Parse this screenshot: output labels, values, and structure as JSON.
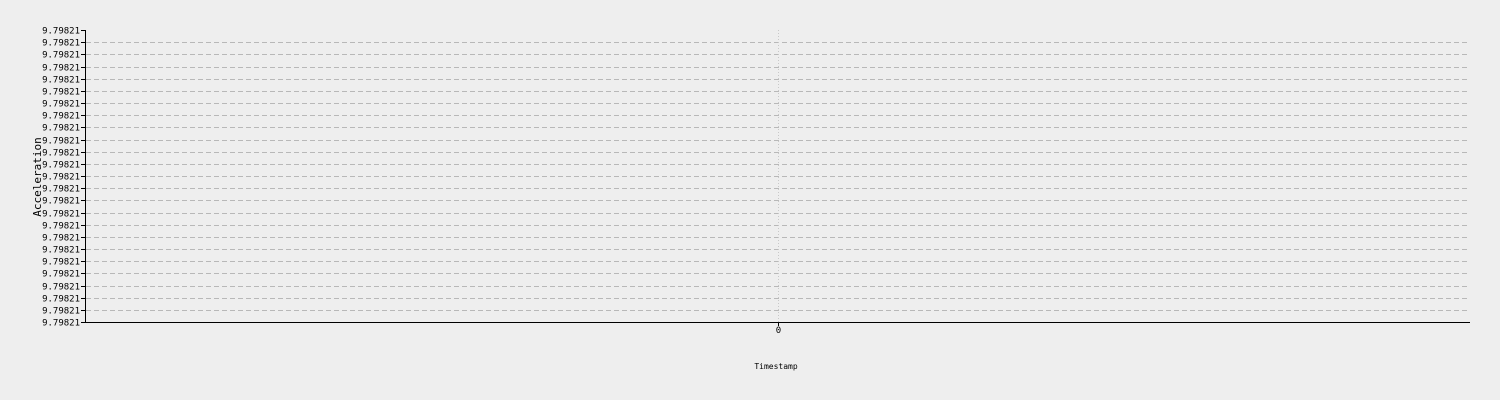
{
  "chart_data": {
    "type": "line",
    "xlabel": "Timestamp",
    "ylabel": "Acceleration",
    "x_ticks": [
      "0"
    ],
    "y_ticks": [
      "9.79821",
      "9.79821",
      "9.79821",
      "9.79821",
      "9.79821",
      "9.79821",
      "9.79821",
      "9.79821",
      "9.79821",
      "9.79821",
      "9.79821",
      "9.79821",
      "9.79821",
      "9.79821",
      "9.79821",
      "9.79821",
      "9.79821",
      "9.79821",
      "9.79821",
      "9.79821",
      "9.79821",
      "9.79821",
      "9.79821",
      "9.79821",
      "9.79821"
    ],
    "grid": true,
    "series": [
      {
        "x": [
          0
        ],
        "y": [
          9.79821
        ]
      }
    ],
    "colors": {
      "background": "#eeeeee",
      "axis": "#000000",
      "grid": "#b8b8b8"
    }
  }
}
